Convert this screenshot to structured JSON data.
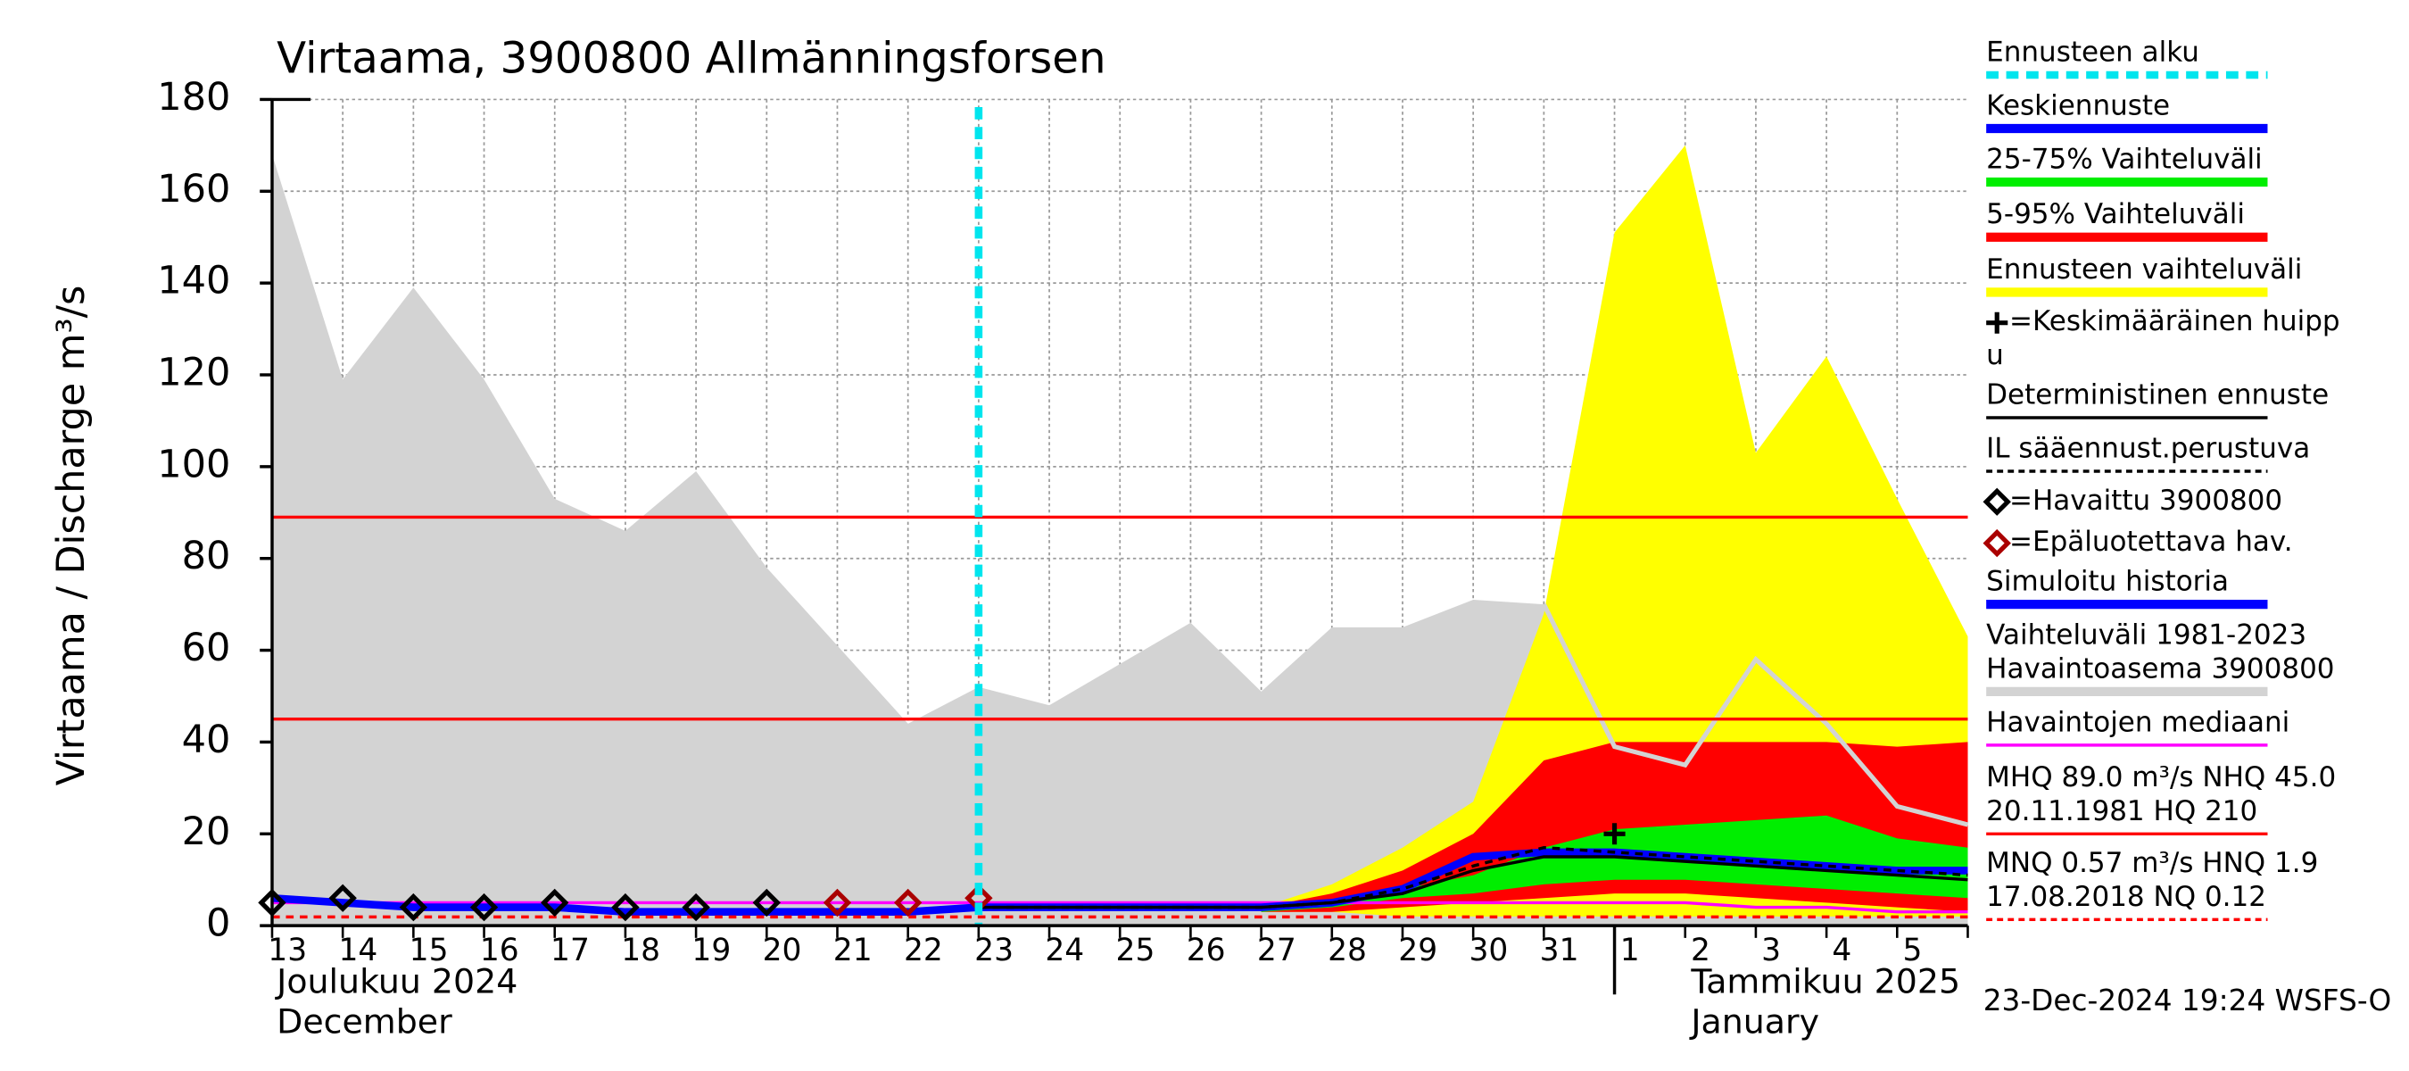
{
  "chart_data": {
    "type": "line",
    "title": "Virtaama, 3900800 Allmänningsforsen",
    "ylabel": "Virtaama / Discharge    m³/s",
    "month_labels": [
      "Joulukuu  2024",
      "December",
      "Tammikuu  2025",
      "January"
    ],
    "footer": "23-Dec-2024 19:24 WSFS-O",
    "categories": [
      "13",
      "14",
      "15",
      "16",
      "17",
      "18",
      "19",
      "20",
      "21",
      "22",
      "23",
      "24",
      "25",
      "26",
      "27",
      "28",
      "29",
      "30",
      "31",
      "1",
      "2",
      "3",
      "4",
      "5",
      null
    ],
    "ylim": [
      0,
      180
    ],
    "yticks": [
      0,
      20,
      40,
      60,
      80,
      100,
      120,
      140,
      160,
      180
    ],
    "grid": true,
    "forecast_start": 10,
    "hlines": [
      {
        "value": 89.0,
        "color": "#ff0000",
        "dashed": false
      },
      {
        "value": 45.0,
        "color": "#ff0000",
        "dashed": false
      },
      {
        "value": 1.9,
        "color": "#ff0000",
        "dashed": true
      }
    ],
    "series": [
      {
        "kind": "band",
        "color": "#d3d3d3",
        "upper": [
          168,
          119,
          139,
          119,
          93,
          86,
          99,
          78,
          61,
          44,
          52,
          48,
          57,
          66,
          51,
          65,
          65,
          71,
          70,
          39,
          35,
          58,
          44,
          26,
          22
        ],
        "lower": [
          0,
          0,
          0,
          0,
          0,
          0,
          0,
          0,
          0,
          0,
          0,
          0,
          0,
          0,
          0,
          0,
          0,
          0,
          0,
          0,
          0,
          0,
          0,
          0,
          0
        ]
      },
      {
        "kind": "band",
        "color": "#ffff00",
        "upper": [
          null,
          null,
          null,
          null,
          null,
          null,
          null,
          null,
          null,
          null,
          null,
          null,
          null,
          null,
          4,
          9,
          17,
          27,
          68,
          151,
          170,
          103,
          124,
          93,
          63
        ],
        "lower": [
          null,
          null,
          null,
          null,
          null,
          null,
          null,
          null,
          null,
          null,
          null,
          null,
          null,
          null,
          3,
          3,
          2,
          2,
          2,
          2,
          2,
          2,
          2,
          2,
          2
        ]
      },
      {
        "kind": "band",
        "color": "#ff0000",
        "upper": [
          null,
          null,
          null,
          null,
          null,
          null,
          null,
          null,
          null,
          null,
          null,
          null,
          null,
          null,
          4,
          7,
          12,
          20,
          36,
          40,
          40,
          40,
          40,
          39,
          40
        ],
        "lower": [
          null,
          null,
          null,
          null,
          null,
          null,
          null,
          null,
          null,
          null,
          null,
          null,
          null,
          null,
          3,
          3,
          4,
          5,
          6,
          7,
          7,
          6,
          5,
          4,
          3
        ]
      },
      {
        "kind": "band",
        "color": "#00ee00",
        "upper": [
          null,
          null,
          null,
          null,
          null,
          null,
          null,
          null,
          null,
          null,
          null,
          null,
          null,
          null,
          4,
          5,
          8,
          11,
          17,
          21,
          22,
          23,
          24,
          19,
          17
        ],
        "lower": [
          null,
          null,
          null,
          null,
          null,
          null,
          null,
          null,
          null,
          null,
          null,
          null,
          null,
          null,
          3,
          4,
          6,
          7,
          9,
          10,
          10,
          9,
          8,
          7,
          6
        ]
      },
      {
        "kind": "line",
        "color": "#d3d3d3",
        "width": 3,
        "values": [
          null,
          null,
          null,
          null,
          null,
          null,
          null,
          null,
          null,
          null,
          null,
          null,
          null,
          null,
          null,
          null,
          null,
          null,
          70,
          39,
          35,
          58,
          44,
          26,
          22
        ]
      },
      {
        "kind": "line",
        "color": "#ff00ff",
        "width": 2,
        "values": [
          5,
          5,
          5,
          5,
          5,
          5,
          5,
          5,
          5,
          5,
          5,
          5,
          5,
          5,
          5,
          5,
          5,
          5,
          5,
          5,
          5,
          4,
          4,
          3,
          3
        ]
      },
      {
        "kind": "line",
        "color": "#0000ff",
        "width": 5,
        "values": [
          6,
          5,
          4,
          4,
          4,
          3,
          3,
          3,
          3,
          3,
          4,
          4,
          4,
          4,
          4,
          5,
          8,
          15,
          16,
          16,
          15,
          14,
          13,
          12,
          12
        ]
      },
      {
        "kind": "line",
        "color": "#000000",
        "width": 2,
        "values": [
          null,
          null,
          null,
          null,
          null,
          null,
          null,
          null,
          null,
          null,
          4,
          4,
          4,
          4,
          4,
          5,
          7,
          12,
          15,
          15,
          14,
          13,
          12,
          11,
          10
        ]
      },
      {
        "kind": "line",
        "color": "#000000",
        "width": 2,
        "dashed": true,
        "values": [
          null,
          null,
          null,
          null,
          null,
          null,
          null,
          null,
          null,
          null,
          4,
          4,
          4,
          4,
          4,
          5,
          8,
          13,
          17,
          16,
          15,
          14,
          13,
          12,
          11
        ]
      },
      {
        "kind": "diamond",
        "color": "#000000",
        "values": [
          5,
          6,
          4,
          4,
          5,
          4,
          4,
          5,
          null,
          null,
          null,
          null,
          null,
          null,
          null,
          null,
          null,
          null,
          null,
          null,
          null,
          null,
          null,
          null,
          null
        ]
      },
      {
        "kind": "diamond",
        "color": "#aa0000",
        "values": [
          null,
          null,
          null,
          null,
          null,
          null,
          null,
          null,
          5,
          5,
          6,
          null,
          null,
          null,
          null,
          null,
          null,
          null,
          null,
          null,
          null,
          null,
          null,
          null,
          null
        ]
      },
      {
        "kind": "cross",
        "color": "#000000",
        "values": [
          null,
          null,
          null,
          null,
          null,
          null,
          null,
          null,
          null,
          null,
          null,
          null,
          null,
          null,
          null,
          null,
          null,
          null,
          null,
          20,
          null,
          null,
          null,
          null,
          null
        ]
      }
    ],
    "legend": [
      {
        "name": [
          "Ennusteen alku"
        ],
        "color": "#00e5ee",
        "style": "dashed"
      },
      {
        "name": [
          "Keskiennuste"
        ],
        "color": "#0000ff",
        "style": "thick"
      },
      {
        "name": [
          "25-75% Vaihteluväli"
        ],
        "color": "#00ee00",
        "style": "thick"
      },
      {
        "name": [
          "5-95% Vaihteluväli"
        ],
        "color": "#ff0000",
        "style": "thick"
      },
      {
        "name": [
          "Ennusteen vaihteluväli"
        ],
        "color": "#ffff00",
        "style": "thick"
      },
      {
        "name": [
          "=Keskimääräinen huipp",
          "u"
        ],
        "color": "#000000",
        "style": "cross"
      },
      {
        "name": [
          "Deterministinen ennuste"
        ],
        "color": "#000000",
        "style": "thin"
      },
      {
        "name": [
          "IL sääennust.perustuva"
        ],
        "color": "#000000",
        "style": "dotted"
      },
      {
        "name": [
          "=Havaittu 3900800"
        ],
        "color": "#000000",
        "style": "diamond"
      },
      {
        "name": [
          "=Epäluotettava hav."
        ],
        "color": "#aa0000",
        "style": "diamond"
      },
      {
        "name": [
          "Simuloitu historia"
        ],
        "color": "#0000ff",
        "style": "thick"
      },
      {
        "name": [
          "Vaihteluväli 1981-2023",
          " Havaintoasema 3900800"
        ],
        "color": "#d3d3d3",
        "style": "thick"
      },
      {
        "name": [
          "Havaintojen mediaani"
        ],
        "color": "#ff00ff",
        "style": "thin"
      },
      {
        "name": [
          "MHQ 89.0 m³/s NHQ 45.0",
          "20.11.1981 HQ  210"
        ],
        "color": "#ff0000",
        "style": "thin"
      },
      {
        "name": [
          "MNQ 0.57 m³/s HNQ  1.9",
          "17.08.2018 NQ 0.12"
        ],
        "color": "#ff0000",
        "style": "dotted"
      }
    ]
  }
}
